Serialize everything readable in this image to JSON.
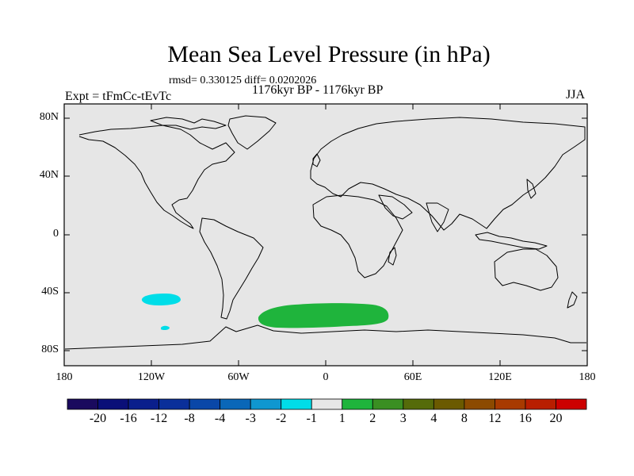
{
  "title": "Mean Sea Level Pressure (in hPa)",
  "stats": "rmsd= 0.330125 diff= 0.0202026",
  "period": "1176kyr BP - 1176kyr BP",
  "experiment": "Expt = tFmCc-tEvTc",
  "season": "JJA",
  "map": {
    "projection": "cylindrical equidistant",
    "lat_ticks": [
      "80N",
      "40N",
      "0",
      "40S",
      "80S"
    ],
    "lon_ticks": [
      "180",
      "120W",
      "60W",
      "0",
      "60E",
      "120E",
      "180"
    ],
    "background_color": "#e6e6e6",
    "anomaly_regions": [
      {
        "name": "south-pacific-negative-anomaly",
        "color": "#00dde8",
        "value_band": "-2 to -1"
      },
      {
        "name": "south-pacific-small-negative-anomaly",
        "color": "#00dde8",
        "value_band": "-2 to -1"
      },
      {
        "name": "southern-ocean-positive-anomaly",
        "color": "#1fb43c",
        "value_band": "1 to 2"
      }
    ]
  },
  "colorbar": {
    "labels": [
      "-20",
      "-16",
      "-12",
      "-8",
      "-4",
      "-3",
      "-2",
      "-1",
      "1",
      "2",
      "3",
      "4",
      "8",
      "12",
      "16",
      "20"
    ],
    "colors": [
      "#1a0a5e",
      "#0a0f78",
      "#0a1f8c",
      "#0a2f9a",
      "#0a47a8",
      "#0a67b8",
      "#0f97d0",
      "#00dde8",
      "#e6e6e6",
      "#1fb43c",
      "#3a8f22",
      "#556b0a",
      "#6b5a00",
      "#8c4a00",
      "#a83a00",
      "#b81e00",
      "#cc0000"
    ]
  }
}
